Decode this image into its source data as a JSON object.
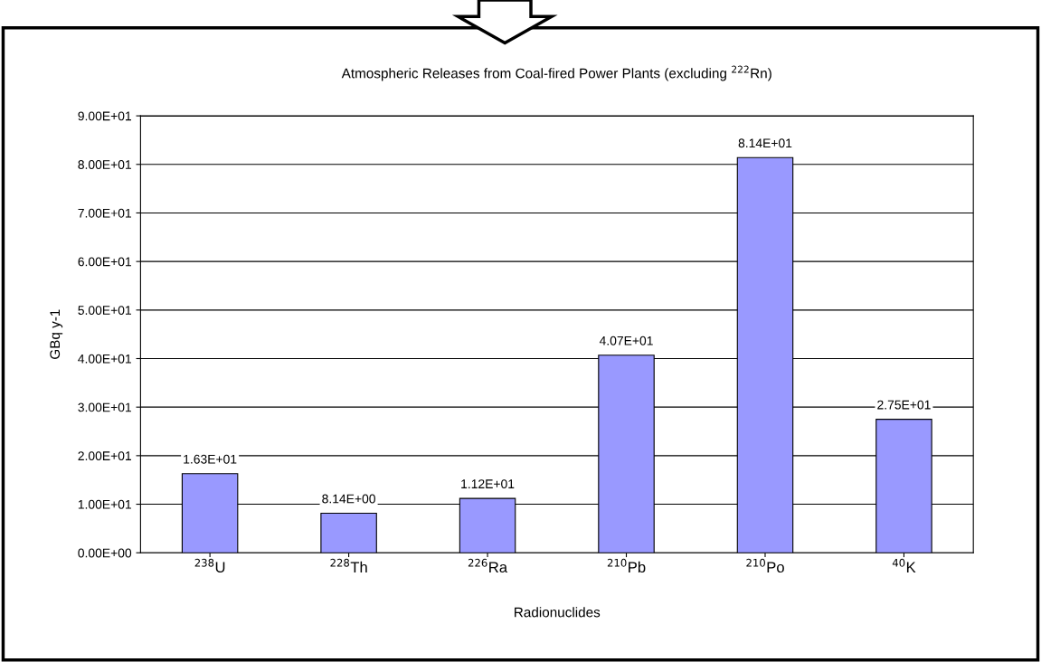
{
  "chart_data": {
    "type": "bar",
    "title": "Atmospheric Releases from Coal-fired Power Plants (excluding $^{222}$Rn)",
    "xlabel": "Radionuclides",
    "ylabel": "GBq y-1",
    "categories": [
      "$^{238}$U",
      "$^{228}$Th",
      "$^{226}$Ra",
      "$^{210}$Pb",
      "$^{210}$Po",
      "$^{40}$K"
    ],
    "values": [
      16.3,
      8.14,
      11.2,
      40.7,
      81.4,
      27.5
    ],
    "value_labels": [
      "1.63E+01",
      "8.14E+00",
      "1.12E+01",
      "4.07E+01",
      "8.14E+01",
      "2.75E+01"
    ],
    "color": "#9999ff",
    "ylim": [
      0,
      90
    ],
    "yticks": [
      {
        "value": 0,
        "label": "0.00E+00"
      },
      {
        "value": 10,
        "label": "1.00E+01"
      },
      {
        "value": 20,
        "label": "2.00E+01"
      },
      {
        "value": 30,
        "label": "3.00E+01"
      },
      {
        "value": 40,
        "label": "4.00E+01"
      },
      {
        "value": 50,
        "label": "5.00E+01"
      },
      {
        "value": 60,
        "label": "6.00E+01"
      },
      {
        "value": 70,
        "label": "7.00E+01"
      },
      {
        "value": 80,
        "label": "8.00E+01"
      },
      {
        "value": 90,
        "label": "9.00E+01"
      }
    ],
    "grid": "y"
  }
}
